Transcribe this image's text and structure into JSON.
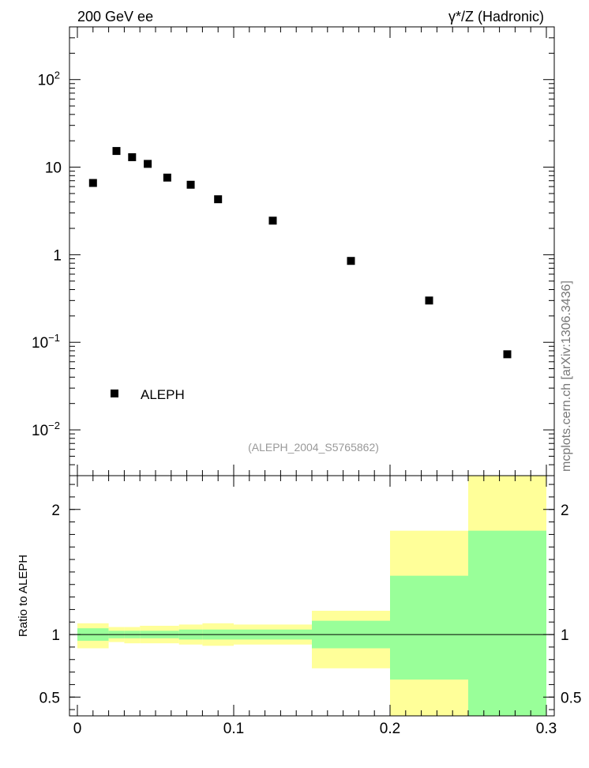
{
  "header": {
    "left": "200 GeV ee",
    "right": "γ*/Z (Hadronic)"
  },
  "side_label": "mcplots.cern.ch [arXiv:1306.3436]",
  "reference_label": "(ALEPH_2004_S5765862)",
  "chart_data": [
    {
      "type": "scatter",
      "y_scale": "log",
      "xlim": [
        0,
        0.3
      ],
      "ylim": [
        0.003,
        400
      ],
      "yticks": [
        {
          "value": 0.01,
          "base": "10",
          "exp": "−2"
        },
        {
          "value": 0.1,
          "base": "10",
          "exp": "−1"
        },
        {
          "value": 1,
          "base": "1",
          "exp": ""
        },
        {
          "value": 10,
          "base": "10",
          "exp": ""
        },
        {
          "value": 100,
          "base": "10",
          "exp": "2"
        }
      ],
      "series": [
        {
          "name": "ALEPH",
          "color": "#000000",
          "x": [
            0.01,
            0.025,
            0.035,
            0.045,
            0.0575,
            0.0725,
            0.09,
            0.125,
            0.175,
            0.225,
            0.275
          ],
          "y": [
            6.6,
            15.3,
            13.0,
            10.9,
            7.6,
            6.3,
            4.3,
            2.45,
            0.85,
            0.3,
            0.073
          ]
        }
      ],
      "legend": "left"
    },
    {
      "type": "area",
      "ylabel": "Ratio to ALEPH",
      "xlim": [
        0,
        0.3
      ],
      "ylim": [
        0.35,
        2.27
      ],
      "xticks": [
        {
          "value": 0,
          "label": "0"
        },
        {
          "value": 0.1,
          "label": "0.1"
        },
        {
          "value": 0.2,
          "label": "0.2"
        },
        {
          "value": 0.3,
          "label": "0.3"
        }
      ],
      "yticks": [
        {
          "value": 0.5,
          "label": "0.5"
        },
        {
          "value": 1,
          "label": "1"
        },
        {
          "value": 2,
          "label": "2"
        }
      ],
      "reference_line": 1,
      "bins": [
        {
          "x0": 0.0,
          "x1": 0.02,
          "stat_lo": 0.95,
          "stat_hi": 1.05,
          "tot_lo": 0.89,
          "tot_hi": 1.09
        },
        {
          "x0": 0.02,
          "x1": 0.03,
          "stat_lo": 0.97,
          "stat_hi": 1.03,
          "tot_lo": 0.94,
          "tot_hi": 1.06
        },
        {
          "x0": 0.03,
          "x1": 0.04,
          "stat_lo": 0.97,
          "stat_hi": 1.03,
          "tot_lo": 0.93,
          "tot_hi": 1.06
        },
        {
          "x0": 0.04,
          "x1": 0.05,
          "stat_lo": 0.97,
          "stat_hi": 1.03,
          "tot_lo": 0.93,
          "tot_hi": 1.07
        },
        {
          "x0": 0.05,
          "x1": 0.065,
          "stat_lo": 0.97,
          "stat_hi": 1.03,
          "tot_lo": 0.93,
          "tot_hi": 1.07
        },
        {
          "x0": 0.065,
          "x1": 0.08,
          "stat_lo": 0.96,
          "stat_hi": 1.04,
          "tot_lo": 0.92,
          "tot_hi": 1.08
        },
        {
          "x0": 0.08,
          "x1": 0.1,
          "stat_lo": 0.96,
          "stat_hi": 1.04,
          "tot_lo": 0.91,
          "tot_hi": 1.09
        },
        {
          "x0": 0.1,
          "x1": 0.15,
          "stat_lo": 0.96,
          "stat_hi": 1.04,
          "tot_lo": 0.92,
          "tot_hi": 1.08
        },
        {
          "x0": 0.15,
          "x1": 0.2,
          "stat_lo": 0.89,
          "stat_hi": 1.11,
          "tot_lo": 0.73,
          "tot_hi": 1.19
        },
        {
          "x0": 0.2,
          "x1": 0.25,
          "stat_lo": 0.64,
          "stat_hi": 1.47,
          "tot_lo": 0.35,
          "tot_hi": 1.83
        },
        {
          "x0": 0.25,
          "x1": 0.3,
          "stat_lo": 0.35,
          "stat_hi": 1.83,
          "tot_lo": 0.35,
          "tot_hi": 2.27
        }
      ],
      "colors": {
        "stat": "#99ff99",
        "total": "#ffff99"
      }
    }
  ]
}
